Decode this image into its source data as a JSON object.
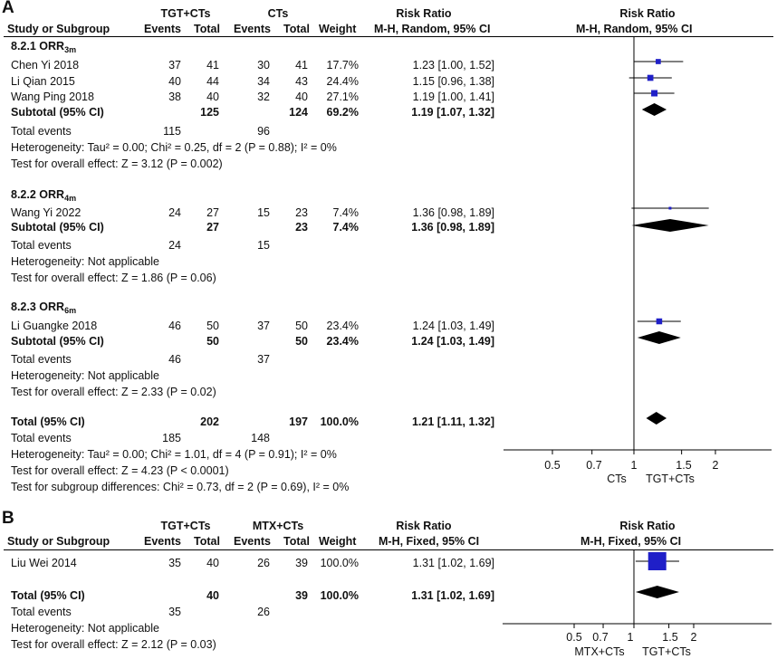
{
  "chart_data": [
    {
      "type": "forest",
      "panel": "A",
      "header": {
        "study": "Study or Subgroup",
        "group1": "TGT+CTs",
        "group2": "CTs",
        "events": "Events",
        "total": "Total",
        "weight": "Weight",
        "rr_title": "Risk Ratio",
        "rr_method": "M-H, Random, 95% CI",
        "plot_title": "Risk Ratio",
        "plot_method": "M-H, Random, 95% CI"
      },
      "subgroups": [
        {
          "name": "8.2.1 ORR",
          "name_sub": "3m",
          "studies": [
            {
              "study": "Chen Yi 2018",
              "e1": "37",
              "t1": "41",
              "e2": "30",
              "t2": "41",
              "weight": "17.7%",
              "ci": "1.23 [1.00, 1.52]",
              "rr": 1.23,
              "lo": 1.0,
              "hi": 1.52
            },
            {
              "study": "Li Qian 2015",
              "e1": "40",
              "t1": "44",
              "e2": "34",
              "t2": "43",
              "weight": "24.4%",
              "ci": "1.15 [0.96, 1.38]",
              "rr": 1.15,
              "lo": 0.96,
              "hi": 1.38
            },
            {
              "study": "Wang Ping 2018",
              "e1": "38",
              "t1": "40",
              "e2": "32",
              "t2": "40",
              "weight": "27.1%",
              "ci": "1.19 [1.00, 1.41]",
              "rr": 1.19,
              "lo": 1.0,
              "hi": 1.41
            }
          ],
          "subtotal": {
            "label": "Subtotal (95% CI)",
            "t1": "125",
            "t2": "124",
            "weight": "69.2%",
            "ci": "1.19 [1.07, 1.32]",
            "rr": 1.19,
            "lo": 1.07,
            "hi": 1.32
          },
          "events_label": "Total events",
          "ev1": "115",
          "ev2": "96",
          "heterogeneity": "Heterogeneity: Tau² = 0.00; Chi² = 0.25, df = 2 (P = 0.88); I² = 0%",
          "overall": "Test for overall effect: Z = 3.12 (P = 0.002)"
        },
        {
          "name": "8.2.2 ORR",
          "name_sub": "4m",
          "studies": [
            {
              "study": "Wang Yi 2022",
              "e1": "24",
              "t1": "27",
              "e2": "15",
              "t2": "23",
              "weight": "7.4%",
              "ci": "1.36 [0.98, 1.89]",
              "rr": 1.36,
              "lo": 0.98,
              "hi": 1.89
            }
          ],
          "subtotal": {
            "label": "Subtotal (95% CI)",
            "t1": "27",
            "t2": "23",
            "weight": "7.4%",
            "ci": "1.36 [0.98, 1.89]",
            "rr": 1.36,
            "lo": 0.98,
            "hi": 1.89
          },
          "events_label": "Total events",
          "ev1": "24",
          "ev2": "15",
          "heterogeneity": "Heterogeneity: Not applicable",
          "overall": "Test for overall effect: Z = 1.86 (P = 0.06)"
        },
        {
          "name": "8.2.3 ORR",
          "name_sub": "6m",
          "studies": [
            {
              "study": "Li Guangke 2018",
              "e1": "46",
              "t1": "50",
              "e2": "37",
              "t2": "50",
              "weight": "23.4%",
              "ci": "1.24 [1.03, 1.49]",
              "rr": 1.24,
              "lo": 1.03,
              "hi": 1.49
            }
          ],
          "subtotal": {
            "label": "Subtotal (95% CI)",
            "t1": "50",
            "t2": "50",
            "weight": "23.4%",
            "ci": "1.24 [1.03, 1.49]",
            "rr": 1.24,
            "lo": 1.03,
            "hi": 1.49
          },
          "events_label": "Total events",
          "ev1": "46",
          "ev2": "37",
          "heterogeneity": "Heterogeneity: Not applicable",
          "overall": "Test for overall effect: Z = 2.33 (P = 0.02)"
        }
      ],
      "total": {
        "label": "Total (95% CI)",
        "t1": "202",
        "t2": "197",
        "weight": "100.0%",
        "ci": "1.21 [1.11, 1.32]",
        "rr": 1.21,
        "lo": 1.11,
        "hi": 1.32
      },
      "total_events": {
        "label": "Total events",
        "ev1": "185",
        "ev2": "148"
      },
      "footer": [
        "Heterogeneity: Tau² = 0.00; Chi² = 1.01, df = 4 (P = 0.91); I² = 0%",
        "Test for overall effect: Z = 4.23 (P < 0.0001)",
        "Test for subgroup differences: Chi² = 0.73, df = 2 (P = 0.69), I² = 0%"
      ],
      "axis": {
        "scale": "log",
        "ticks": [
          "0.5",
          "0.7",
          "1",
          "1.5",
          "2"
        ],
        "tick_values": [
          0.5,
          0.7,
          1,
          1.5,
          2
        ],
        "xlim": [
          0.5,
          2
        ],
        "left_label": "CTs",
        "right_label": "TGT+CTs"
      }
    },
    {
      "type": "forest",
      "panel": "B",
      "header": {
        "study": "Study or Subgroup",
        "group1": "TGT+CTs",
        "group2": "MTX+CTs",
        "events": "Events",
        "total": "Total",
        "weight": "Weight",
        "rr_title": "Risk Ratio",
        "rr_method": "M-H, Fixed, 95% CI",
        "plot_title": "Risk Ratio",
        "plot_method": "M-H, Fixed, 95% CI"
      },
      "studies": [
        {
          "study": "Liu Wei 2014",
          "e1": "35",
          "t1": "40",
          "e2": "26",
          "t2": "39",
          "weight": "100.0%",
          "ci": "1.31 [1.02, 1.69]",
          "rr": 1.31,
          "lo": 1.02,
          "hi": 1.69
        }
      ],
      "total": {
        "label": "Total (95% CI)",
        "t1": "40",
        "t2": "39",
        "weight": "100.0%",
        "ci": "1.31 [1.02, 1.69]",
        "rr": 1.31,
        "lo": 1.02,
        "hi": 1.69
      },
      "total_events": {
        "label": "Total events",
        "ev1": "35",
        "ev2": "26"
      },
      "footer": [
        "Heterogeneity: Not applicable",
        "Test for overall effect: Z = 2.12 (P = 0.03)"
      ],
      "axis": {
        "scale": "log",
        "ticks": [
          "0.5",
          "0.7",
          "1",
          "1.5",
          "2"
        ],
        "tick_values": [
          0.5,
          0.7,
          1,
          1.5,
          2
        ],
        "xlim": [
          0.5,
          2
        ],
        "left_label": "MTX+CTs",
        "right_label": "TGT+CTs"
      }
    }
  ],
  "panel_labels": [
    "A",
    "B"
  ],
  "colors": {
    "marker": "#1f1fc8",
    "diamond": "#000000",
    "line": "#000000"
  }
}
